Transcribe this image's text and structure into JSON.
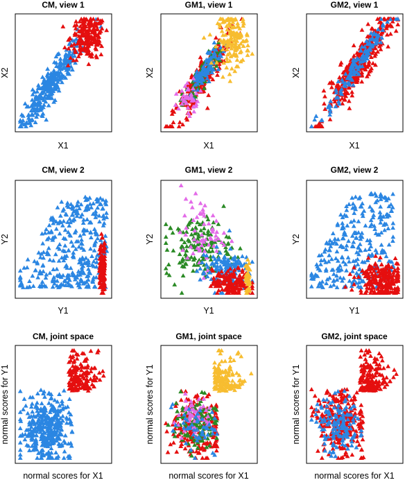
{
  "colors": {
    "blue": "#2b86e2",
    "red": "#e50f0f",
    "orange": "#f7bd30",
    "green": "#2a8a25",
    "violet": "#e36be8"
  },
  "marker": "triangle",
  "panels": [
    {
      "title": "CM, view 1",
      "xlabel": "X1",
      "ylabel": "X2"
    },
    {
      "title": "GM1, view 1",
      "xlabel": "X1",
      "ylabel": "X2"
    },
    {
      "title": "GM2, view 1",
      "xlabel": "X1",
      "ylabel": "X2"
    },
    {
      "title": "CM, view 2",
      "xlabel": "Y1",
      "ylabel": "Y2"
    },
    {
      "title": "GM1, view 2",
      "xlabel": "Y1",
      "ylabel": "Y2"
    },
    {
      "title": "GM2, view 2",
      "xlabel": "Y1",
      "ylabel": "Y2"
    },
    {
      "title": "CM, joint space",
      "xlabel": "normal scores for X1",
      "ylabel": "normal scores for Y1"
    },
    {
      "title": "GM1, joint space",
      "xlabel": "normal scores for X1",
      "ylabel": "normal scores for Y1"
    },
    {
      "title": "GM2, joint space",
      "xlabel": "normal scores for X1",
      "ylabel": "normal scores for Y1"
    }
  ],
  "chart_data": [
    {
      "type": "scatter",
      "title": "CM, view 1",
      "xlabel": "X1",
      "ylabel": "X2",
      "axes": "none",
      "grid": false,
      "legend": "none",
      "clusters": [
        {
          "color": "blue",
          "shape": "elongated-diagonal",
          "center": [
            0.36,
            0.4
          ],
          "spread": [
            0.28,
            0.05
          ],
          "angle_deg": 50,
          "count": 320
        },
        {
          "color": "red",
          "shape": "blob",
          "center": [
            0.78,
            0.82
          ],
          "spread": [
            0.1,
            0.1
          ],
          "angle_deg": 0,
          "count": 200
        }
      ]
    },
    {
      "type": "scatter",
      "title": "GM1, view 1",
      "xlabel": "X1",
      "ylabel": "X2",
      "axes": "none",
      "grid": false,
      "legend": "none",
      "clusters": [
        {
          "color": "red",
          "shape": "elongated-diagonal",
          "center": [
            0.4,
            0.43
          ],
          "spread": [
            0.26,
            0.055
          ],
          "angle_deg": 52,
          "count": 250
        },
        {
          "color": "green",
          "shape": "elongated-diagonal",
          "center": [
            0.42,
            0.47
          ],
          "spread": [
            0.16,
            0.04
          ],
          "angle_deg": 52,
          "count": 80
        },
        {
          "color": "blue",
          "shape": "elongated-diagonal",
          "center": [
            0.48,
            0.54
          ],
          "spread": [
            0.14,
            0.04
          ],
          "angle_deg": 52,
          "count": 90
        },
        {
          "color": "violet",
          "shape": "blob",
          "center": [
            0.26,
            0.26
          ],
          "spread": [
            0.07,
            0.06
          ],
          "angle_deg": 50,
          "count": 40
        },
        {
          "color": "orange",
          "shape": "blob",
          "center": [
            0.78,
            0.8
          ],
          "spread": [
            0.09,
            0.12
          ],
          "angle_deg": 0,
          "count": 150
        }
      ]
    },
    {
      "type": "scatter",
      "title": "GM2, view 1",
      "xlabel": "X1",
      "ylabel": "X2",
      "axes": "none",
      "grid": false,
      "legend": "none",
      "clusters": [
        {
          "color": "red",
          "shape": "elongated-diagonal",
          "center": [
            0.55,
            0.58
          ],
          "spread": [
            0.3,
            0.06
          ],
          "angle_deg": 50,
          "count": 380
        },
        {
          "color": "blue",
          "shape": "elongated-diagonal",
          "center": [
            0.52,
            0.55
          ],
          "spread": [
            0.26,
            0.035
          ],
          "angle_deg": 50,
          "count": 140
        }
      ]
    },
    {
      "type": "scatter",
      "title": "CM, view 2",
      "xlabel": "Y1",
      "ylabel": "Y2",
      "axes": "none",
      "grid": false,
      "legend": "none",
      "clusters": [
        {
          "color": "blue",
          "shape": "triangular-fan",
          "center": [
            0.55,
            0.35
          ],
          "spread": [
            0.28,
            0.2
          ],
          "angle_deg": 0,
          "count": 350
        },
        {
          "color": "red",
          "shape": "vertical-band",
          "center": [
            0.94,
            0.25
          ],
          "spread": [
            0.03,
            0.12
          ],
          "angle_deg": 0,
          "count": 140
        }
      ]
    },
    {
      "type": "scatter",
      "title": "GM1, view 2",
      "xlabel": "Y1",
      "ylabel": "Y2",
      "axes": "none",
      "grid": false,
      "legend": "none",
      "clusters": [
        {
          "color": "green",
          "shape": "blob",
          "center": [
            0.38,
            0.42
          ],
          "spread": [
            0.18,
            0.14
          ],
          "angle_deg": 0,
          "count": 160
        },
        {
          "color": "violet",
          "shape": "blob",
          "center": [
            0.42,
            0.55
          ],
          "spread": [
            0.12,
            0.16
          ],
          "angle_deg": 0,
          "count": 60
        },
        {
          "color": "blue",
          "shape": "blob",
          "center": [
            0.68,
            0.22
          ],
          "spread": [
            0.14,
            0.1
          ],
          "angle_deg": 0,
          "count": 150
        },
        {
          "color": "red",
          "shape": "blob",
          "center": [
            0.76,
            0.1
          ],
          "spread": [
            0.11,
            0.06
          ],
          "angle_deg": 0,
          "count": 150
        },
        {
          "color": "orange",
          "shape": "vertical-band",
          "center": [
            0.94,
            0.14
          ],
          "spread": [
            0.025,
            0.08
          ],
          "angle_deg": 0,
          "count": 50
        }
      ]
    },
    {
      "type": "scatter",
      "title": "GM2, view 2",
      "xlabel": "Y1",
      "ylabel": "Y2",
      "axes": "none",
      "grid": false,
      "legend": "none",
      "clusters": [
        {
          "color": "blue",
          "shape": "triangular-fan",
          "center": [
            0.52,
            0.38
          ],
          "spread": [
            0.26,
            0.2
          ],
          "angle_deg": 0,
          "count": 300
        },
        {
          "color": "red",
          "shape": "blob",
          "center": [
            0.8,
            0.14
          ],
          "spread": [
            0.13,
            0.08
          ],
          "angle_deg": 0,
          "count": 230
        }
      ]
    },
    {
      "type": "scatter",
      "title": "CM, joint space",
      "xlabel": "normal scores for X1",
      "ylabel": "normal scores for Y1",
      "axes": "none",
      "grid": false,
      "legend": "none",
      "clusters": [
        {
          "color": "blue",
          "shape": "box-lower-left",
          "center": [
            0.3,
            0.28
          ],
          "spread": [
            0.14,
            0.14
          ],
          "angle_deg": 0,
          "count": 380
        },
        {
          "color": "red",
          "shape": "box-upper-right",
          "center": [
            0.72,
            0.8
          ],
          "spread": [
            0.1,
            0.09
          ],
          "angle_deg": 0,
          "count": 150
        }
      ]
    },
    {
      "type": "scatter",
      "title": "GM1, joint space",
      "xlabel": "normal scores for X1",
      "ylabel": "normal scores for Y1",
      "axes": "none",
      "grid": false,
      "legend": "none",
      "clusters": [
        {
          "color": "red",
          "shape": "box-lower-left",
          "center": [
            0.36,
            0.3
          ],
          "spread": [
            0.15,
            0.14
          ],
          "angle_deg": 0,
          "count": 230
        },
        {
          "color": "green",
          "shape": "box-lower-left",
          "center": [
            0.34,
            0.32
          ],
          "spread": [
            0.13,
            0.12
          ],
          "angle_deg": 0,
          "count": 120
        },
        {
          "color": "violet",
          "shape": "box-lower-left",
          "center": [
            0.32,
            0.36
          ],
          "spread": [
            0.09,
            0.09
          ],
          "angle_deg": 0,
          "count": 50
        },
        {
          "color": "blue",
          "shape": "box-lower-left",
          "center": [
            0.38,
            0.28
          ],
          "spread": [
            0.12,
            0.12
          ],
          "angle_deg": 0,
          "count": 50
        },
        {
          "color": "orange",
          "shape": "box-upper-right",
          "center": [
            0.72,
            0.8
          ],
          "spread": [
            0.1,
            0.09
          ],
          "angle_deg": 0,
          "count": 140
        }
      ]
    },
    {
      "type": "scatter",
      "title": "GM2, joint space",
      "xlabel": "normal scores for X1",
      "ylabel": "normal scores for Y1",
      "axes": "none",
      "grid": false,
      "legend": "none",
      "clusters": [
        {
          "color": "red",
          "shape": "box-lower-left",
          "center": [
            0.34,
            0.34
          ],
          "spread": [
            0.14,
            0.15
          ],
          "angle_deg": 0,
          "count": 280
        },
        {
          "color": "blue",
          "shape": "box-lower-left",
          "center": [
            0.3,
            0.32
          ],
          "spread": [
            0.13,
            0.13
          ],
          "angle_deg": 0,
          "count": 140
        },
        {
          "color": "red",
          "shape": "box-upper-right",
          "center": [
            0.72,
            0.8
          ],
          "spread": [
            0.1,
            0.09
          ],
          "angle_deg": 0,
          "count": 150
        }
      ]
    }
  ]
}
